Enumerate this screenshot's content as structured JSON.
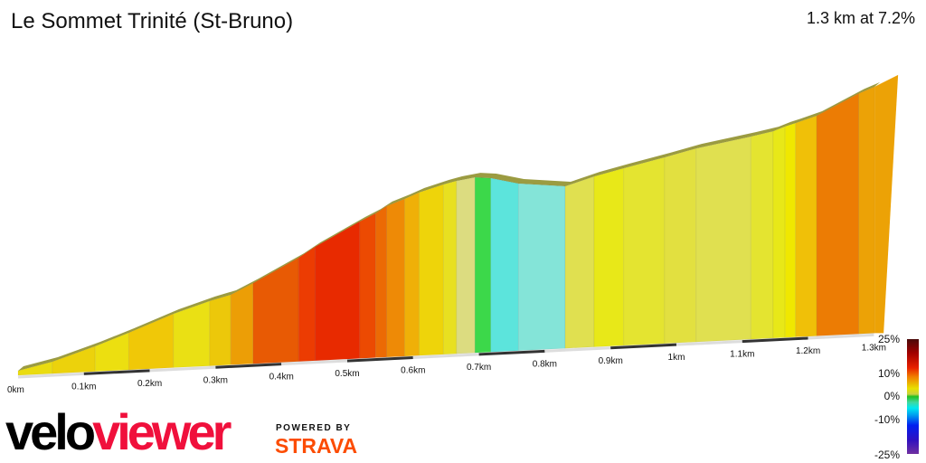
{
  "title": "Le Sommet Trinité (St-Bruno)",
  "summary": "1.3 km at 7.2%",
  "chart_data": {
    "type": "area",
    "title": "Le Sommet Trinité (St-Bruno)",
    "xlabel": "",
    "ylabel": "",
    "x_unit": "km",
    "xlim": [
      0,
      1.3
    ],
    "x_ticks": [
      "0km",
      "0.1km",
      "0.2km",
      "0.3km",
      "0.4km",
      "0.5km",
      "0.6km",
      "0.7km",
      "0.8km",
      "0.9km",
      "1km",
      "1.1km",
      "1.2km",
      "1.3km"
    ],
    "profile": [
      {
        "d": 0,
        "e": 0
      },
      {
        "d": 0.052,
        "e": 2.8
      },
      {
        "d": 0.117,
        "e": 7.9
      },
      {
        "d": 0.168,
        "e": 12.4
      },
      {
        "d": 0.236,
        "e": 18.8
      },
      {
        "d": 0.291,
        "e": 23
      },
      {
        "d": 0.323,
        "e": 25
      },
      {
        "d": 0.357,
        "e": 29
      },
      {
        "d": 0.426,
        "e": 37.8
      },
      {
        "d": 0.451,
        "e": 41.7
      },
      {
        "d": 0.519,
        "e": 50.5
      },
      {
        "d": 0.543,
        "e": 53.3
      },
      {
        "d": 0.56,
        "e": 55.9
      },
      {
        "d": 0.587,
        "e": 58.3
      },
      {
        "d": 0.609,
        "e": 60.5
      },
      {
        "d": 0.646,
        "e": 63.1
      },
      {
        "d": 0.666,
        "e": 64.2
      },
      {
        "d": 0.694,
        "e": 65.2
      },
      {
        "d": 0.718,
        "e": 64.6
      },
      {
        "d": 0.76,
        "e": 62
      },
      {
        "d": 0.831,
        "e": 60.1
      },
      {
        "d": 0.875,
        "e": 63.3
      },
      {
        "d": 0.92,
        "e": 65.9
      },
      {
        "d": 0.982,
        "e": 69.3
      },
      {
        "d": 1.03,
        "e": 72.1
      },
      {
        "d": 1.113,
        "e": 75.6
      },
      {
        "d": 1.147,
        "e": 77.2
      },
      {
        "d": 1.165,
        "e": 78.8
      },
      {
        "d": 1.181,
        "e": 79.9
      },
      {
        "d": 1.213,
        "e": 82.3
      },
      {
        "d": 1.277,
        "e": 90
      },
      {
        "d": 1.301,
        "e": 92.3
      }
    ],
    "segment_colors": [
      "#eadc10",
      "#ecd20c",
      "#ecdf10",
      "#f0c808",
      "#eae014",
      "#ecc80a",
      "#ec9e06",
      "#e85a04",
      "#ec3c02",
      "#e82a00",
      "#ec4a02",
      "#ec6a04",
      "#ee8a06",
      "#efb008",
      "#eed40a",
      "#e8e020",
      "#dcdc80",
      "#3cd84a",
      "#5ce4dc",
      "#84e4d8",
      "#e0e050",
      "#e8e818",
      "#e4e430",
      "#e2e040",
      "#e0e050",
      "#e4e430",
      "#e8e818",
      "#f0e800",
      "#f0c008",
      "#ec7c04",
      "#eca206"
    ],
    "legend": {
      "labels": [
        "25%",
        "10%",
        "0%",
        "-10%",
        "-25%"
      ],
      "placement": "bottom-right"
    }
  },
  "branding": {
    "logo_left": "velo",
    "logo_right": "viewer",
    "powered_by": "POWERED BY",
    "strava": "STRAVA"
  }
}
